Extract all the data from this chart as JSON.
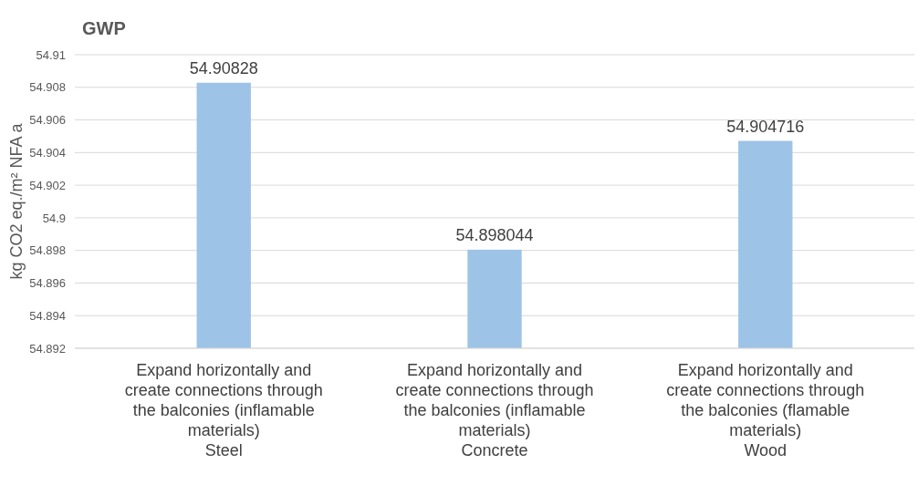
{
  "chart_data": {
    "type": "bar",
    "title": "GWP",
    "ylabel": "kg CO2 eq./m² NFA a",
    "categories": [
      "Expand horizontally and\ncreate connections through\nthe balconies (inflamable\nmaterials)\nSteel",
      "Expand horizontally and\ncreate connections through\nthe balconies (inflamable\nmaterials)\nConcrete",
      "Expand horizontally and\ncreate connections through\nthe balconies (flamable\nmaterials)\nWood"
    ],
    "values": [
      54.90828,
      54.898044,
      54.904716
    ],
    "color": "#9dc3e6",
    "ylim": [
      54.892,
      54.91
    ],
    "yticks": [
      54.892,
      54.894,
      54.896,
      54.898,
      54.9,
      54.902,
      54.904,
      54.906,
      54.908,
      54.91
    ],
    "grid": "y",
    "data_labels": true
  }
}
